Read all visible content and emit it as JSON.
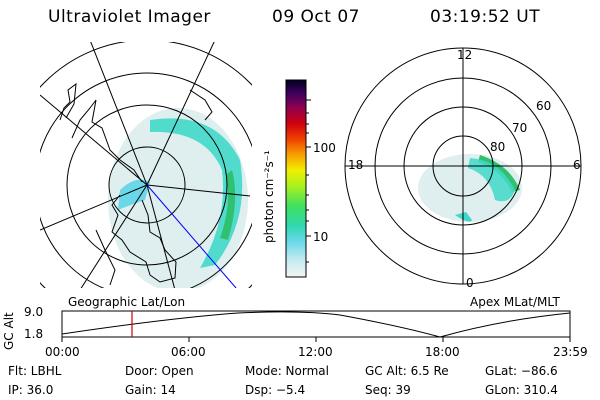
{
  "header": {
    "instrument": "Ultraviolet Imager",
    "date": "09 Oct 07",
    "time": "03:19:52 UT"
  },
  "colorbar": {
    "label": "photon cm⁻²s⁻¹",
    "ticks": [
      "100",
      "10"
    ]
  },
  "left_panel": {
    "label": "Geographic Lat/Lon"
  },
  "right_panel": {
    "label": "Apex MLat/MLT",
    "mlt_labels": {
      "top": "12",
      "left": "18",
      "right": "6",
      "bottom": "0"
    },
    "lat_labels": [
      "60",
      "70",
      "80"
    ]
  },
  "altitude_plot": {
    "ylabel": "GC Alt",
    "yticks": [
      "9.0",
      "1.8"
    ],
    "xticks": [
      "00:00",
      "06:00",
      "12:00",
      "18:00",
      "23:59"
    ]
  },
  "info": {
    "filter": "Flt: LBHL",
    "door": "Door: Open",
    "mode": "Mode: Normal",
    "gc_alt": "GC Alt: 6.5 Re",
    "glat": "GLat: −86.6",
    "ip": "IP: 36.0",
    "gain": "Gain: 14",
    "dsp": "Dsp:   −5.4",
    "seq": "Seq: 39",
    "glon": "GLon: 310.4"
  },
  "colors": {
    "aurora_main": "#40d8c8",
    "aurora_bright": "#30c070",
    "aurora_faint": "#d8ecec",
    "time_marker": "#d00000",
    "terminator_line": "#0000ff"
  }
}
